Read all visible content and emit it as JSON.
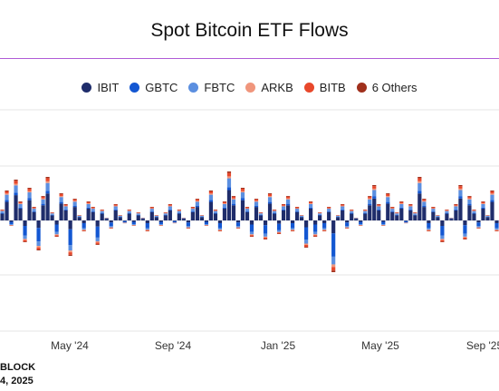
{
  "chart_data": {
    "type": "bar",
    "stacked": true,
    "title": "Spot Bitcoin ETF Flows",
    "legend_position": "top-center",
    "grid": true,
    "x_tick_labels": [
      "May '24",
      "Sep '24",
      "Jan '25",
      "May '25",
      "Sep '25"
    ],
    "series": [
      {
        "name": "IBIT",
        "color": "#1f2d6b"
      },
      {
        "name": "GBTC",
        "color": "#1357d2"
      },
      {
        "name": "FBTC",
        "color": "#5b8fe0"
      },
      {
        "name": "ARKB",
        "color": "#f0967c"
      },
      {
        "name": "BITB",
        "color": "#e8482b"
      },
      {
        "name": "6 Others",
        "color": "#a0301c"
      }
    ],
    "approximate_daily_totals": [
      0.2,
      0.55,
      -0.1,
      0.75,
      0.35,
      -0.4,
      0.6,
      0.25,
      -0.55,
      0.45,
      0.8,
      0.15,
      -0.3,
      0.5,
      0.3,
      -0.65,
      0.4,
      0.1,
      -0.2,
      0.35,
      0.25,
      -0.45,
      0.2,
      0.05,
      -0.15,
      0.3,
      0.1,
      -0.05,
      0.2,
      -0.1,
      0.15,
      0.05,
      -0.2,
      0.25,
      0.1,
      -0.1,
      0.15,
      0.3,
      -0.05,
      0.2,
      0.05,
      -0.15,
      0.25,
      0.4,
      0.1,
      -0.1,
      0.55,
      0.2,
      -0.2,
      0.35,
      0.9,
      0.45,
      -0.15,
      0.6,
      0.25,
      -0.3,
      0.4,
      0.15,
      -0.35,
      0.5,
      0.2,
      -0.25,
      0.3,
      0.45,
      -0.2,
      0.25,
      0.1,
      -0.5,
      0.35,
      -0.3,
      0.15,
      -0.2,
      0.25,
      -0.95,
      0.1,
      0.3,
      -0.15,
      0.2,
      0.05,
      -0.1,
      0.2,
      0.45,
      0.65,
      0.3,
      -0.1,
      0.5,
      0.25,
      0.15,
      0.35,
      -0.05,
      0.3,
      0.15,
      0.8,
      0.4,
      -0.2,
      0.25,
      0.1,
      -0.4,
      0.2,
      0.05,
      0.3,
      0.65,
      -0.35,
      0.45,
      0.2,
      -0.15,
      0.35,
      0.1,
      0.55,
      -0.2
    ]
  },
  "footer": {
    "line1": "BLOCK",
    "line2": "4, 2025"
  }
}
